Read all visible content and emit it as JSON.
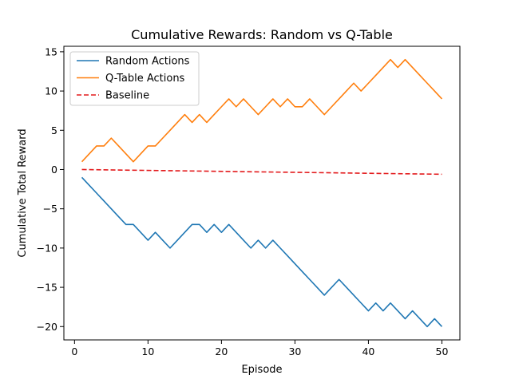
{
  "chart_data": {
    "type": "line",
    "title": "Cumulative Rewards: Random vs Q-Table",
    "xlabel": "Episode",
    "ylabel": "Cumulative Total Reward",
    "xlim": [
      -1.45,
      52.45
    ],
    "ylim": [
      -21.7,
      15.7
    ],
    "xticks": [
      0,
      10,
      20,
      30,
      40,
      50
    ],
    "yticks": [
      -20,
      -15,
      -10,
      -5,
      0,
      5,
      10,
      15
    ],
    "grid": false,
    "legend_position": "top-left",
    "x": [
      1,
      2,
      3,
      4,
      5,
      6,
      7,
      8,
      9,
      10,
      11,
      12,
      13,
      14,
      15,
      16,
      17,
      18,
      19,
      20,
      21,
      22,
      23,
      24,
      25,
      26,
      27,
      28,
      29,
      30,
      31,
      32,
      33,
      34,
      35,
      36,
      37,
      38,
      39,
      40,
      41,
      42,
      43,
      44,
      45,
      46,
      47,
      48,
      49,
      50
    ],
    "series": [
      {
        "name": "Random Actions",
        "color": "#1f77b4",
        "style": "solid",
        "values": [
          -1,
          -2,
          -3,
          -4,
          -5,
          -6,
          -7,
          -7,
          -8,
          -9,
          -8,
          -9,
          -10,
          -9,
          -8,
          -7,
          -7,
          -8,
          -7,
          -8,
          -7,
          -8,
          -9,
          -10,
          -9,
          -10,
          -9,
          -10,
          -11,
          -12,
          -13,
          -14,
          -15,
          -16,
          -15,
          -14,
          -15,
          -16,
          -17,
          -18,
          -17,
          -18,
          -17,
          -18,
          -19,
          -18,
          -19,
          -20,
          -19,
          -20
        ]
      },
      {
        "name": "Q-Table Actions",
        "color": "#ff7f0e",
        "style": "solid",
        "values": [
          1,
          2,
          3,
          3,
          4,
          3,
          2,
          1,
          2,
          3,
          3,
          4,
          5,
          6,
          7,
          6,
          7,
          6,
          7,
          8,
          9,
          8,
          9,
          8,
          7,
          8,
          9,
          8,
          9,
          8,
          8,
          9,
          8,
          7,
          8,
          9,
          10,
          11,
          10,
          11,
          12,
          13,
          14,
          13,
          14,
          13,
          12,
          11,
          10,
          9
        ]
      },
      {
        "name": "Baseline",
        "color": "#e31a1c",
        "style": "dashed",
        "line_start": [
          1,
          0.0
        ],
        "line_end": [
          50,
          -0.6
        ]
      }
    ]
  }
}
